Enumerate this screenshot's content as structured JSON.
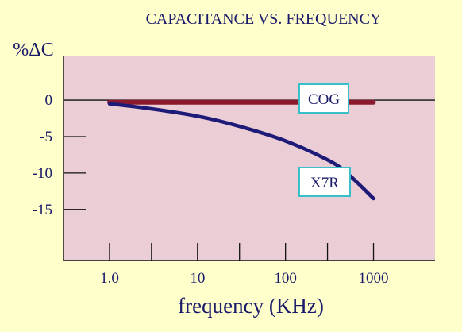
{
  "chart_data": {
    "type": "line",
    "title": "CAPACITANCE VS. FREQUENCY",
    "ylabel": "%ΔC",
    "xlabel": "frequency (KHz)",
    "x_scale": "log",
    "xlim": [
      0.3,
      5000
    ],
    "ylim": [
      -22,
      6
    ],
    "x_ticks": [
      1,
      3,
      10,
      30,
      100,
      300,
      1000
    ],
    "x_tick_labels": [
      {
        "value": 1,
        "label": "1.0"
      },
      {
        "value": 10,
        "label": "10"
      },
      {
        "value": 100,
        "label": "100"
      },
      {
        "value": 1000,
        "label": "1000"
      }
    ],
    "y_ticks": [
      0,
      -5,
      -10,
      -15
    ],
    "y_tick_labels": [
      "0",
      "-5",
      "-10",
      "-15"
    ],
    "series": [
      {
        "name": "COG",
        "color": "#8b1a2e",
        "x": [
          1.0,
          10,
          100,
          1000
        ],
        "y": [
          -0.3,
          -0.3,
          -0.3,
          -0.3
        ]
      },
      {
        "name": "X7R",
        "color": "#1e1a78",
        "x": [
          1.0,
          3,
          10,
          30,
          100,
          300,
          500,
          1000
        ],
        "y": [
          -0.5,
          -1.2,
          -2.2,
          -3.6,
          -5.6,
          -8.2,
          -10.0,
          -13.5
        ]
      }
    ],
    "plot_background": "#ebcdd6",
    "page_background": "#ffffcc",
    "label_box_border": "#38c0c8"
  }
}
